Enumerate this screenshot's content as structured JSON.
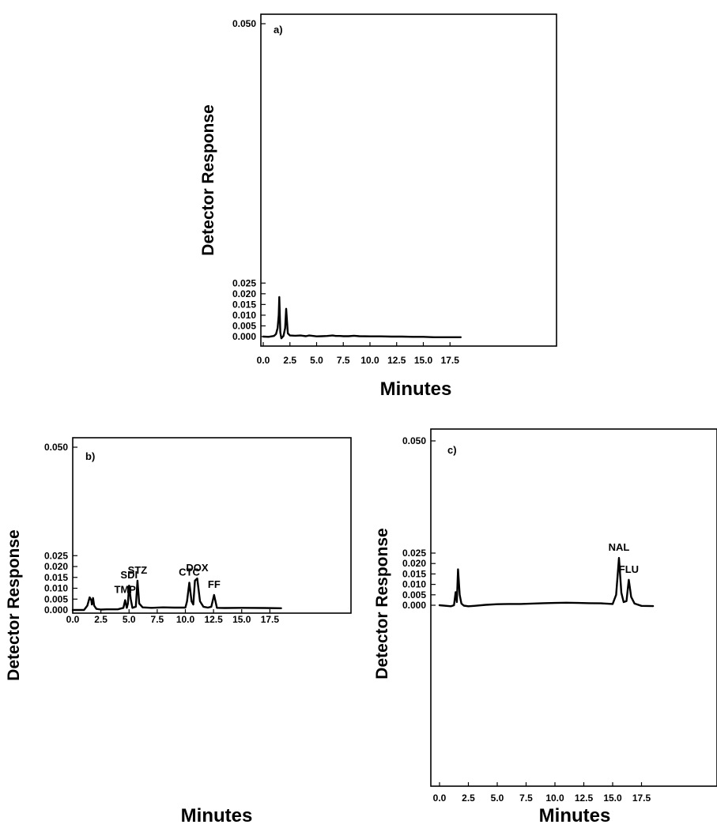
{
  "chart_data": [
    {
      "type": "line",
      "panel_label": "a)",
      "xlabel": "Minutes",
      "ylabel": "Detector Response",
      "xlim": [
        0,
        18.5
      ],
      "ylim": [
        -0.001,
        0.05
      ],
      "x_ticks": [
        0.0,
        2.5,
        5.0,
        7.5,
        10.0,
        12.5,
        15.0,
        17.5
      ],
      "x_tick_labels": [
        "0.0",
        "2.5",
        "5.0",
        "7.5",
        "10.0",
        "12.5",
        "15.0",
        "17.5"
      ],
      "y_ticks": [
        0.0,
        0.005,
        0.01,
        0.015,
        0.02,
        0.025,
        0.05
      ],
      "y_tick_labels": [
        "0.000",
        "0.005",
        "0.010",
        "0.015",
        "0.020",
        "0.025",
        "0.050"
      ],
      "y_axis_break": [
        0.025,
        0.05
      ],
      "series": [
        {
          "x": [
            0.0,
            0.5,
            1.0,
            1.2,
            1.35,
            1.45,
            1.5,
            1.6,
            1.7,
            1.9,
            2.05,
            2.15,
            2.3,
            2.5,
            3.0,
            3.5,
            4.0,
            4.3,
            5.0,
            5.5,
            6.0,
            6.5,
            6.8,
            7.2,
            7.5,
            8.0,
            8.5,
            9.0,
            10.0,
            11.0,
            12.0,
            13.0,
            14.0,
            15.0,
            16.0,
            17.0,
            18.5
          ],
          "y": [
            0.0,
            -0.0001,
            0.0003,
            0.0012,
            0.004,
            0.01,
            0.0185,
            0.002,
            -0.0008,
            0.0003,
            0.004,
            0.013,
            0.0015,
            0.0005,
            0.0004,
            0.0005,
            0.0002,
            0.0005,
            0.0001,
            0.0002,
            0.0003,
            0.0005,
            0.0003,
            0.0003,
            0.0002,
            0.0002,
            0.0004,
            0.0002,
            0.0001,
            0.0001,
            0.0,
            0.0,
            -0.0001,
            -0.0001,
            -0.0003,
            -0.0003,
            -0.0003
          ]
        }
      ],
      "annotations": []
    },
    {
      "type": "line",
      "panel_label": "b)",
      "xlabel": "Minutes",
      "ylabel": "Detector Response",
      "xlim": [
        0,
        18.5
      ],
      "ylim": [
        -0.002,
        0.05
      ],
      "x_ticks": [
        0.0,
        2.5,
        5.0,
        7.5,
        10.0,
        12.5,
        15.0,
        17.5
      ],
      "x_tick_labels": [
        "0.0",
        "2.5",
        "5.0",
        "7.5",
        "10.0",
        "12.5",
        "15.0",
        "17.5"
      ],
      "y_ticks": [
        0.0,
        0.005,
        0.01,
        0.015,
        0.02,
        0.025,
        0.05
      ],
      "y_tick_labels": [
        "0.000",
        "0.005",
        "0.010",
        "0.015",
        "0.020",
        "0.025",
        "0.050"
      ],
      "y_axis_break": [
        0.025,
        0.05
      ],
      "series": [
        {
          "x": [
            0.0,
            1.0,
            1.3,
            1.5,
            1.65,
            1.7,
            1.8,
            1.9,
            2.1,
            2.5,
            3.0,
            4.0,
            4.5,
            4.65,
            4.8,
            4.9,
            5.0,
            5.15,
            5.3,
            5.6,
            5.75,
            5.9,
            6.2,
            7.0,
            8.0,
            9.0,
            10.0,
            10.15,
            10.35,
            10.55,
            10.7,
            10.85,
            11.05,
            11.3,
            11.6,
            12.0,
            12.3,
            12.55,
            12.8,
            13.5,
            15.0,
            17.0,
            18.5
          ],
          "y": [
            0.0,
            0.0,
            0.002,
            0.0058,
            0.0045,
            0.0025,
            0.0055,
            0.002,
            0.0005,
            0.0002,
            0.0003,
            0.0003,
            0.001,
            0.0045,
            0.001,
            0.003,
            0.0112,
            0.005,
            0.001,
            0.0015,
            0.0135,
            0.003,
            0.0012,
            0.001,
            0.0012,
            0.0011,
            0.0011,
            0.004,
            0.0126,
            0.004,
            0.0025,
            0.0135,
            0.0145,
            0.004,
            0.0015,
            0.0011,
            0.0015,
            0.0069,
            0.001,
            0.0009,
            0.001,
            0.0009,
            0.0008
          ]
        }
      ],
      "annotations": [
        {
          "text": "TMP",
          "x": 4.65,
          "y": 0.0045
        },
        {
          "text": "SDI",
          "x": 5.0,
          "y": 0.0112
        },
        {
          "text": "STZ",
          "x": 5.75,
          "y": 0.0135
        },
        {
          "text": "CTC",
          "x": 10.35,
          "y": 0.0126
        },
        {
          "text": "DOX",
          "x": 11.05,
          "y": 0.0145
        },
        {
          "text": "FF",
          "x": 12.55,
          "y": 0.0069
        }
      ]
    },
    {
      "type": "line",
      "panel_label": "c)",
      "xlabel": "Minutes",
      "ylabel": "Detector Response",
      "xlim": [
        0,
        18.5
      ],
      "ylim": [
        -0.002,
        0.05
      ],
      "x_ticks": [
        0.0,
        2.5,
        5.0,
        7.5,
        10.0,
        12.5,
        15.0,
        17.5
      ],
      "x_tick_labels": [
        "0.0",
        "2.5",
        "5.0",
        "7.5",
        "10.0",
        "12.5",
        "15.0",
        "17.5"
      ],
      "y_ticks": [
        0.0,
        0.005,
        0.01,
        0.015,
        0.02,
        0.025,
        0.05
      ],
      "y_tick_labels": [
        "0.000",
        "0.005",
        "0.010",
        "0.015",
        "0.020",
        "0.025",
        "0.050"
      ],
      "y_axis_break": [
        0.025,
        0.05
      ],
      "series": [
        {
          "x": [
            0.0,
            1.0,
            1.25,
            1.4,
            1.5,
            1.6,
            1.75,
            1.9,
            2.1,
            2.5,
            3.0,
            4.0,
            5.0,
            6.0,
            7.0,
            8.0,
            9.0,
            10.0,
            11.0,
            12.0,
            13.0,
            14.0,
            15.0,
            15.3,
            15.55,
            15.75,
            15.95,
            16.2,
            16.4,
            16.6,
            16.9,
            17.5,
            18.5
          ],
          "y": [
            0.0,
            -0.0005,
            0.0,
            0.0063,
            0.0015,
            0.0172,
            0.005,
            0.0008,
            -0.0002,
            -0.0005,
            -0.0003,
            0.0002,
            0.0005,
            0.0006,
            0.0006,
            0.0008,
            0.001,
            0.0011,
            0.0012,
            0.0011,
            0.001,
            0.0009,
            0.0006,
            0.005,
            0.0227,
            0.006,
            0.0015,
            0.002,
            0.0122,
            0.004,
            0.0008,
            -0.0003,
            -0.0004
          ]
        }
      ],
      "annotations": [
        {
          "text": "NAL",
          "x": 15.55,
          "y": 0.0227
        },
        {
          "text": "FLU",
          "x": 16.4,
          "y": 0.0122
        }
      ]
    }
  ]
}
